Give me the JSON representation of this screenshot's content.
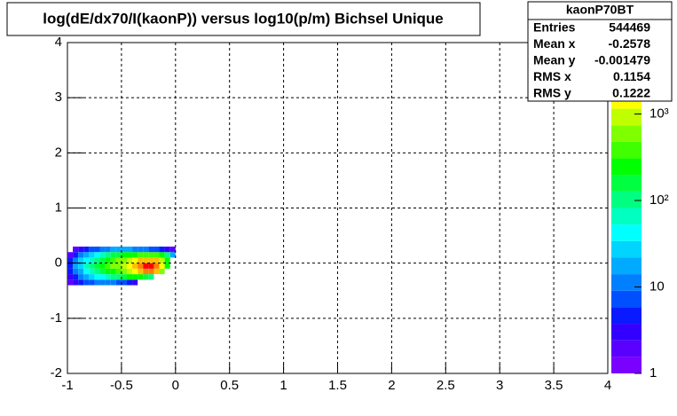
{
  "chart_data": {
    "type": "heatmap",
    "title": "log(dE/dx70/I(kaonP)) versus log10(p/m) Bichsel Unique",
    "xbins": [
      -1,
      -0.95,
      -0.9,
      -0.85,
      -0.8,
      -0.75,
      -0.7,
      -0.65,
      -0.6,
      -0.55,
      -0.5,
      -0.45,
      -0.4,
      -0.35,
      -0.3,
      -0.25,
      -0.2,
      -0.15,
      -0.1,
      -0.05,
      0
    ],
    "ybins": [
      -0.4,
      -0.3,
      -0.2,
      -0.1,
      0,
      0.1,
      0.2,
      0.3
    ],
    "z": [
      [
        2,
        3,
        5,
        6,
        8,
        10,
        10,
        12,
        10,
        8,
        6,
        4,
        3,
        null,
        null,
        null,
        null,
        null,
        null,
        null
      ],
      [
        3,
        5,
        10,
        20,
        30,
        40,
        50,
        80,
        100,
        120,
        150,
        200,
        250,
        200,
        150,
        100,
        null,
        null,
        null,
        null
      ],
      [
        4,
        10,
        20,
        40,
        60,
        100,
        150,
        200,
        300,
        400,
        600,
        800,
        1200,
        2000,
        3000,
        3500,
        2000,
        500,
        null,
        null
      ],
      [
        5,
        15,
        30,
        60,
        100,
        150,
        250,
        350,
        500,
        700,
        1000,
        1500,
        2500,
        4000,
        5000,
        5500,
        4000,
        1500,
        300,
        null
      ],
      [
        4,
        10,
        25,
        50,
        80,
        120,
        180,
        250,
        350,
        500,
        700,
        1000,
        1500,
        2000,
        2500,
        2500,
        2000,
        1000,
        300,
        null
      ],
      [
        2,
        5,
        10,
        20,
        30,
        50,
        70,
        100,
        130,
        160,
        200,
        250,
        300,
        350,
        400,
        400,
        350,
        250,
        100,
        20
      ],
      [
        null,
        2,
        3,
        5,
        6,
        8,
        10,
        12,
        15,
        15,
        15,
        15,
        12,
        10,
        10,
        8,
        6,
        5,
        3,
        2
      ]
    ],
    "xlim": [
      -1,
      4
    ],
    "ylim": [
      -2,
      4
    ],
    "xticks": [
      -1,
      -0.5,
      0,
      0.5,
      1,
      1.5,
      2,
      2.5,
      3,
      3.5,
      4
    ],
    "yticks": [
      -2,
      -1,
      0,
      1,
      2,
      3,
      4
    ],
    "zlim": [
      1,
      6700
    ],
    "zlog": true,
    "zticks": [
      1,
      10,
      {
        "value": 100,
        "label": "10²"
      },
      {
        "value": 1000,
        "label": "10³"
      }
    ],
    "grid": true,
    "palette": [
      "#7a00ff",
      "#5a00ff",
      "#3300ff",
      "#0a1aff",
      "#0050ff",
      "#0080ff",
      "#00aaff",
      "#00d4ff",
      "#00ffff",
      "#00ffc0",
      "#00ff80",
      "#00ff40",
      "#00ff00",
      "#40ff00",
      "#80ff00",
      "#c0ff00",
      "#ffff00",
      "#ffc000",
      "#ff8000",
      "#ff0000"
    ],
    "stats": {
      "title": "kaonP70BT",
      "rows": [
        {
          "label": "Entries",
          "value": 544469
        },
        {
          "label": "Mean x",
          "value": -0.2578
        },
        {
          "label": "Mean y",
          "value": -0.001479
        },
        {
          "label": "RMS x",
          "value": 0.1154
        },
        {
          "label": "RMS y",
          "value": 0.1222
        }
      ]
    }
  }
}
